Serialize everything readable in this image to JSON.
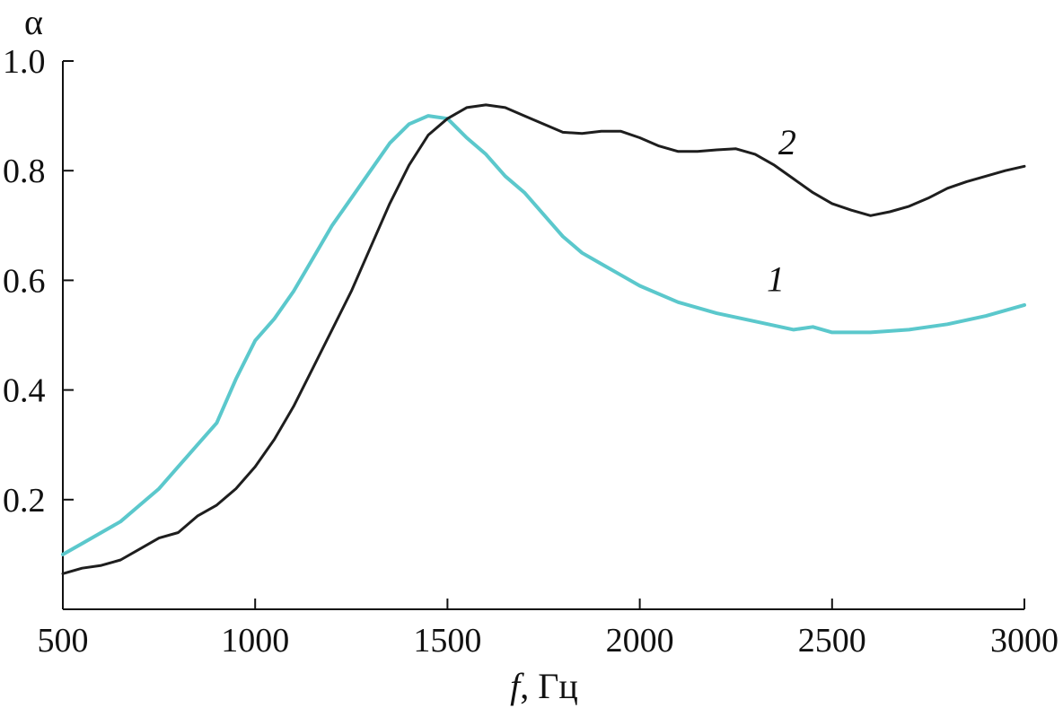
{
  "chart_data": {
    "type": "line",
    "xlabel_italic": "f",
    "xlabel_rest": ", Гц",
    "ylabel": "α",
    "xlim": [
      500,
      3000
    ],
    "ylim": [
      0,
      1.0
    ],
    "x_ticks": [
      500,
      1000,
      1500,
      2000,
      2500,
      3000
    ],
    "x_tick_labels": [
      "500",
      "1000",
      "1500",
      "2000",
      "2500",
      "3000"
    ],
    "y_ticks": [
      0.2,
      0.4,
      0.6,
      0.8,
      1.0
    ],
    "y_tick_labels": [
      "0.2",
      "0.4",
      "0.6",
      "0.8",
      "1.0"
    ],
    "grid": false,
    "series": [
      {
        "label": "1",
        "color": "#5bc8cc",
        "label_at": [
          2330,
          0.58
        ],
        "points": [
          [
            500,
            0.1
          ],
          [
            550,
            0.12
          ],
          [
            600,
            0.14
          ],
          [
            650,
            0.16
          ],
          [
            700,
            0.19
          ],
          [
            750,
            0.22
          ],
          [
            800,
            0.26
          ],
          [
            850,
            0.3
          ],
          [
            900,
            0.34
          ],
          [
            950,
            0.42
          ],
          [
            1000,
            0.49
          ],
          [
            1050,
            0.53
          ],
          [
            1100,
            0.58
          ],
          [
            1150,
            0.64
          ],
          [
            1200,
            0.7
          ],
          [
            1250,
            0.75
          ],
          [
            1300,
            0.8
          ],
          [
            1350,
            0.85
          ],
          [
            1400,
            0.885
          ],
          [
            1450,
            0.9
          ],
          [
            1500,
            0.895
          ],
          [
            1550,
            0.86
          ],
          [
            1600,
            0.83
          ],
          [
            1650,
            0.79
          ],
          [
            1700,
            0.76
          ],
          [
            1750,
            0.72
          ],
          [
            1800,
            0.68
          ],
          [
            1850,
            0.65
          ],
          [
            1900,
            0.63
          ],
          [
            1950,
            0.61
          ],
          [
            2000,
            0.59
          ],
          [
            2100,
            0.56
          ],
          [
            2200,
            0.54
          ],
          [
            2300,
            0.525
          ],
          [
            2400,
            0.51
          ],
          [
            2450,
            0.515
          ],
          [
            2500,
            0.505
          ],
          [
            2600,
            0.505
          ],
          [
            2700,
            0.51
          ],
          [
            2800,
            0.52
          ],
          [
            2900,
            0.535
          ],
          [
            3000,
            0.555
          ]
        ]
      },
      {
        "label": "2",
        "color": "#1e1e1e",
        "label_at": [
          2360,
          0.83
        ],
        "points": [
          [
            500,
            0.065
          ],
          [
            550,
            0.075
          ],
          [
            600,
            0.08
          ],
          [
            650,
            0.09
          ],
          [
            700,
            0.11
          ],
          [
            750,
            0.13
          ],
          [
            800,
            0.14
          ],
          [
            850,
            0.17
          ],
          [
            900,
            0.19
          ],
          [
            950,
            0.22
          ],
          [
            1000,
            0.26
          ],
          [
            1050,
            0.31
          ],
          [
            1100,
            0.37
          ],
          [
            1150,
            0.44
          ],
          [
            1200,
            0.51
          ],
          [
            1250,
            0.58
          ],
          [
            1300,
            0.66
          ],
          [
            1350,
            0.74
          ],
          [
            1400,
            0.81
          ],
          [
            1450,
            0.865
          ],
          [
            1500,
            0.895
          ],
          [
            1550,
            0.915
          ],
          [
            1600,
            0.92
          ],
          [
            1650,
            0.915
          ],
          [
            1700,
            0.9
          ],
          [
            1750,
            0.885
          ],
          [
            1800,
            0.87
          ],
          [
            1850,
            0.868
          ],
          [
            1900,
            0.872
          ],
          [
            1950,
            0.872
          ],
          [
            2000,
            0.86
          ],
          [
            2050,
            0.845
          ],
          [
            2100,
            0.835
          ],
          [
            2150,
            0.835
          ],
          [
            2200,
            0.838
          ],
          [
            2250,
            0.84
          ],
          [
            2300,
            0.83
          ],
          [
            2350,
            0.81
          ],
          [
            2400,
            0.785
          ],
          [
            2450,
            0.76
          ],
          [
            2500,
            0.74
          ],
          [
            2550,
            0.728
          ],
          [
            2600,
            0.718
          ],
          [
            2650,
            0.725
          ],
          [
            2700,
            0.735
          ],
          [
            2750,
            0.75
          ],
          [
            2800,
            0.768
          ],
          [
            2850,
            0.78
          ],
          [
            2900,
            0.79
          ],
          [
            2950,
            0.8
          ],
          [
            3000,
            0.808
          ]
        ]
      }
    ]
  }
}
